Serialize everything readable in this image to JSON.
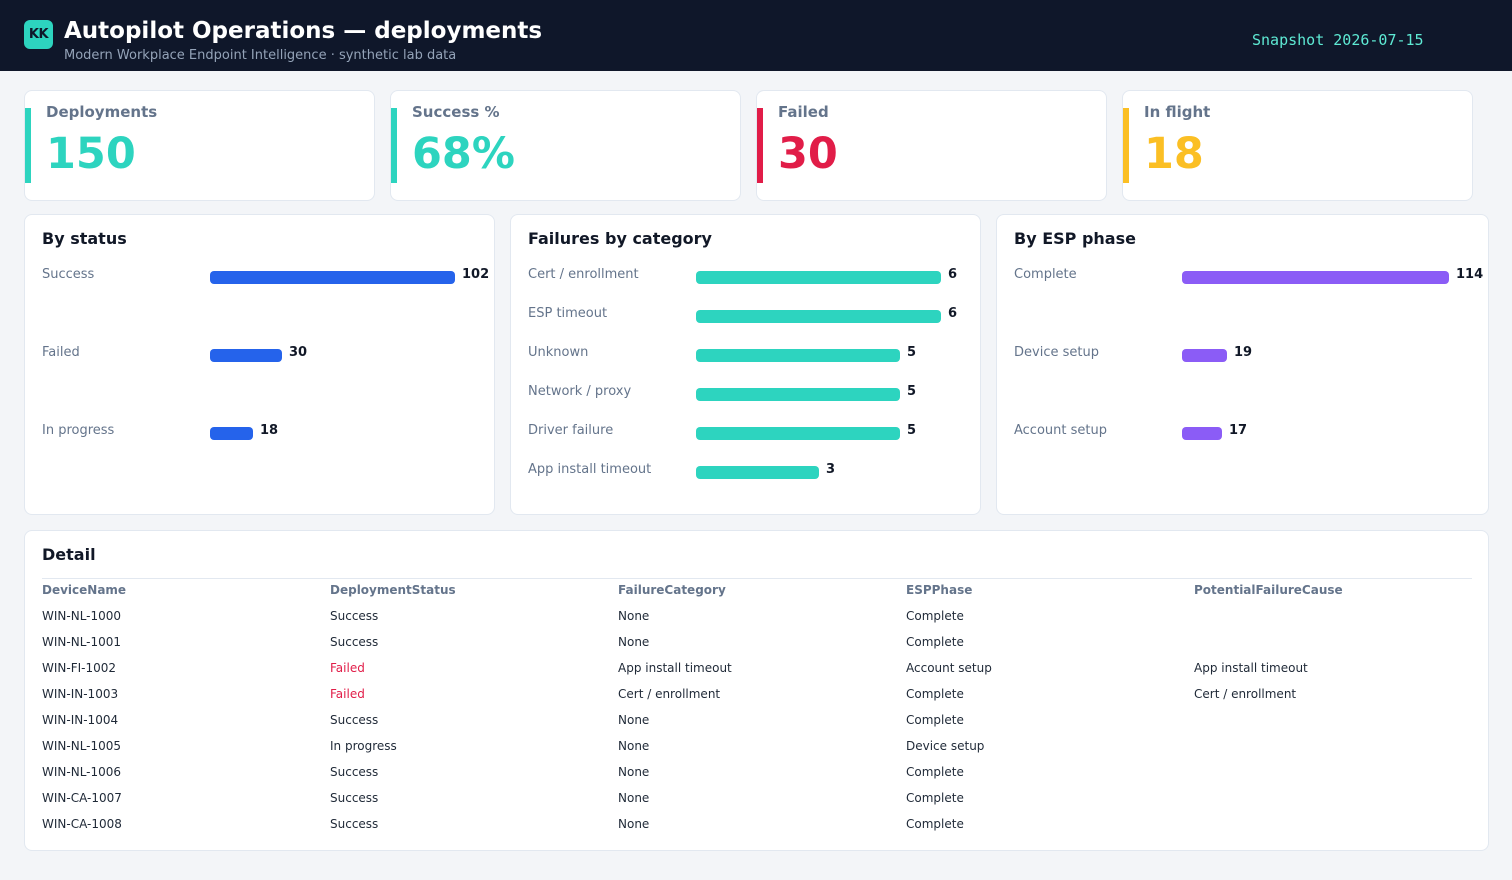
{
  "header": {
    "logo": "KK",
    "title": "Autopilot Operations — deployments",
    "subtitle": "Modern Workplace Endpoint Intelligence · synthetic lab data",
    "snapshot": "Snapshot 2026-07-15"
  },
  "colors": {
    "teal": "#2dd4bf",
    "red": "#e11d48",
    "amber": "#fbbf24",
    "blue": "#2563eb",
    "purple": "#8b5cf6"
  },
  "kpis": [
    {
      "label": "Deployments",
      "value": "150",
      "color": "#2dd4bf"
    },
    {
      "label": "Success %",
      "value": "68%",
      "color": "#2dd4bf"
    },
    {
      "label": "Failed",
      "value": "30",
      "color": "#e11d48"
    },
    {
      "label": "In flight",
      "value": "18",
      "color": "#fbbf24"
    }
  ],
  "panels": [
    {
      "title": "By status",
      "color": "#2563eb",
      "max": 102,
      "rows": [
        {
          "label": "Success",
          "value": 102
        },
        {
          "label": "Failed",
          "value": 30
        },
        {
          "label": "In progress",
          "value": 18
        }
      ]
    },
    {
      "title": "Failures by category",
      "color": "#2dd4bf",
      "max": 6,
      "rows": [
        {
          "label": "Cert / enrollment",
          "value": 6
        },
        {
          "label": "ESP timeout",
          "value": 6
        },
        {
          "label": "Unknown",
          "value": 5
        },
        {
          "label": "Network / proxy",
          "value": 5
        },
        {
          "label": "Driver failure",
          "value": 5
        },
        {
          "label": "App install timeout",
          "value": 3
        }
      ]
    },
    {
      "title": "By ESP phase",
      "color": "#8b5cf6",
      "max": 114,
      "rows": [
        {
          "label": "Complete",
          "value": 114
        },
        {
          "label": "Device setup",
          "value": 19
        },
        {
          "label": "Account setup",
          "value": 17
        }
      ]
    }
  ],
  "detail": {
    "title": "Detail",
    "columns": [
      "DeviceName",
      "DeploymentStatus",
      "FailureCategory",
      "ESPPhase",
      "PotentialFailureCause"
    ],
    "rows": [
      [
        "WIN-NL-1000",
        "Success",
        "None",
        "Complete",
        ""
      ],
      [
        "WIN-NL-1001",
        "Success",
        "None",
        "Complete",
        ""
      ],
      [
        "WIN-FI-1002",
        "Failed",
        "App install timeout",
        "Account setup",
        "App install timeout"
      ],
      [
        "WIN-IN-1003",
        "Failed",
        "Cert / enrollment",
        "Complete",
        "Cert / enrollment"
      ],
      [
        "WIN-IN-1004",
        "Success",
        "None",
        "Complete",
        ""
      ],
      [
        "WIN-NL-1005",
        "In progress",
        "None",
        "Device setup",
        ""
      ],
      [
        "WIN-NL-1006",
        "Success",
        "None",
        "Complete",
        ""
      ],
      [
        "WIN-CA-1007",
        "Success",
        "None",
        "Complete",
        ""
      ],
      [
        "WIN-CA-1008",
        "Success",
        "None",
        "Complete",
        ""
      ]
    ]
  }
}
